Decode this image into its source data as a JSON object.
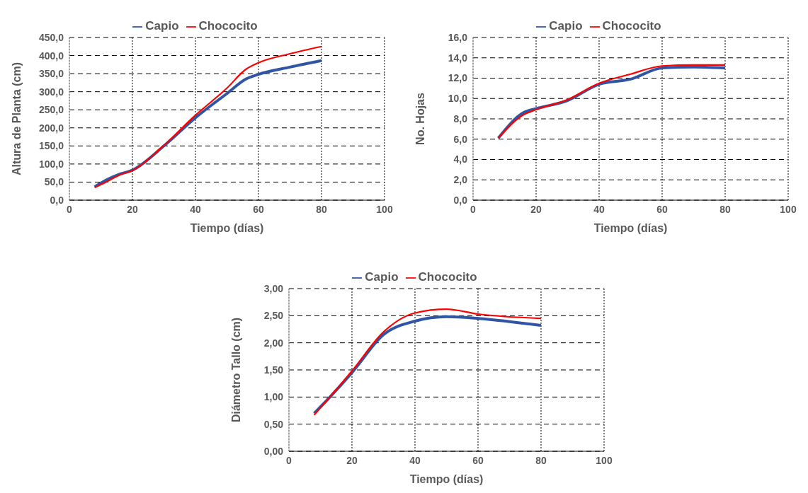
{
  "chart_data": [
    {
      "type": "line",
      "xlabel": "Tiempo (días)",
      "ylabel": "Altura de Planta (cm)",
      "x": [
        8,
        12,
        16,
        20,
        30,
        40,
        50,
        56,
        60,
        70,
        80
      ],
      "series": [
        {
          "name": "Capio",
          "color": "#2f55a4",
          "values": [
            37,
            57,
            72,
            83,
            150,
            228,
            295,
            335,
            348,
            368,
            386
          ]
        },
        {
          "name": "Chococito",
          "color": "#ff0000",
          "values": [
            35,
            52,
            70,
            82,
            152,
            235,
            310,
            362,
            380,
            405,
            425
          ]
        }
      ],
      "xlim": [
        0,
        100
      ],
      "xticks": [
        0,
        20,
        40,
        60,
        80,
        100
      ],
      "ylim": [
        0,
        450
      ],
      "yticks": [
        {
          "value": 0,
          "label": "0,0"
        },
        {
          "value": 50,
          "label": "50,0"
        },
        {
          "value": 100,
          "label": "100,0"
        },
        {
          "value": 150,
          "label": "150,0"
        },
        {
          "value": 200,
          "label": "200,0"
        },
        {
          "value": 250,
          "label": "250,0"
        },
        {
          "value": 300,
          "label": "300,0"
        },
        {
          "value": 350,
          "label": "350,0"
        },
        {
          "value": 400,
          "label": "400,0"
        },
        {
          "value": 450,
          "label": "450,0"
        }
      ],
      "grid": true,
      "legend": "top",
      "marker": "none"
    },
    {
      "type": "line",
      "xlabel": "Tiempo (días)",
      "ylabel": "No. Hojas",
      "x": [
        8,
        16,
        20,
        30,
        40,
        50,
        60,
        70,
        80
      ],
      "series": [
        {
          "name": "Capio",
          "color": "#2f55a4",
          "values": [
            6.1,
            8.6,
            9.0,
            9.8,
            11.4,
            11.9,
            13.0,
            13.1,
            13.0
          ]
        },
        {
          "name": "Chococito",
          "color": "#ff0000",
          "values": [
            6.1,
            8.4,
            8.9,
            9.9,
            11.5,
            12.4,
            13.2,
            13.3,
            13.3
          ]
        }
      ],
      "xlim": [
        0,
        100
      ],
      "xticks": [
        0,
        20,
        40,
        60,
        80,
        100
      ],
      "ylim": [
        0,
        16
      ],
      "yticks": [
        {
          "value": 0,
          "label": "0,0"
        },
        {
          "value": 2,
          "label": "2,0"
        },
        {
          "value": 4,
          "label": "4,0"
        },
        {
          "value": 6,
          "label": "6,0"
        },
        {
          "value": 8,
          "label": "8,0"
        },
        {
          "value": 10,
          "label": "10,0"
        },
        {
          "value": 12,
          "label": "12,0"
        },
        {
          "value": 14,
          "label": "14,0"
        },
        {
          "value": 16,
          "label": "16,0"
        }
      ],
      "grid": true,
      "legend": "top",
      "marker": "none"
    },
    {
      "type": "line",
      "xlabel": "Tiempo (días)",
      "ylabel": "Diámetro  Tallo (cm)",
      "x": [
        8,
        13,
        20,
        30,
        40,
        50,
        60,
        80
      ],
      "series": [
        {
          "name": "Capio",
          "color": "#2f55a4",
          "values": [
            0.7,
            1.0,
            1.45,
            2.15,
            2.4,
            2.48,
            2.45,
            2.32
          ]
        },
        {
          "name": "Chococito",
          "color": "#ff0000",
          "values": [
            0.67,
            1.0,
            1.48,
            2.2,
            2.55,
            2.62,
            2.53,
            2.45
          ]
        }
      ],
      "xlim": [
        0,
        100
      ],
      "xticks": [
        0,
        20,
        40,
        60,
        80,
        100
      ],
      "ylim": [
        0,
        3
      ],
      "yticks": [
        {
          "value": 0,
          "label": "0,00"
        },
        {
          "value": 0.5,
          "label": "0,50"
        },
        {
          "value": 1,
          "label": "1,00"
        },
        {
          "value": 1.5,
          "label": "1,50"
        },
        {
          "value": 2,
          "label": "2,00"
        },
        {
          "value": 2.5,
          "label": "2,50"
        },
        {
          "value": 3,
          "label": "3,00"
        }
      ],
      "grid": true,
      "legend": "top",
      "marker": "none"
    }
  ]
}
